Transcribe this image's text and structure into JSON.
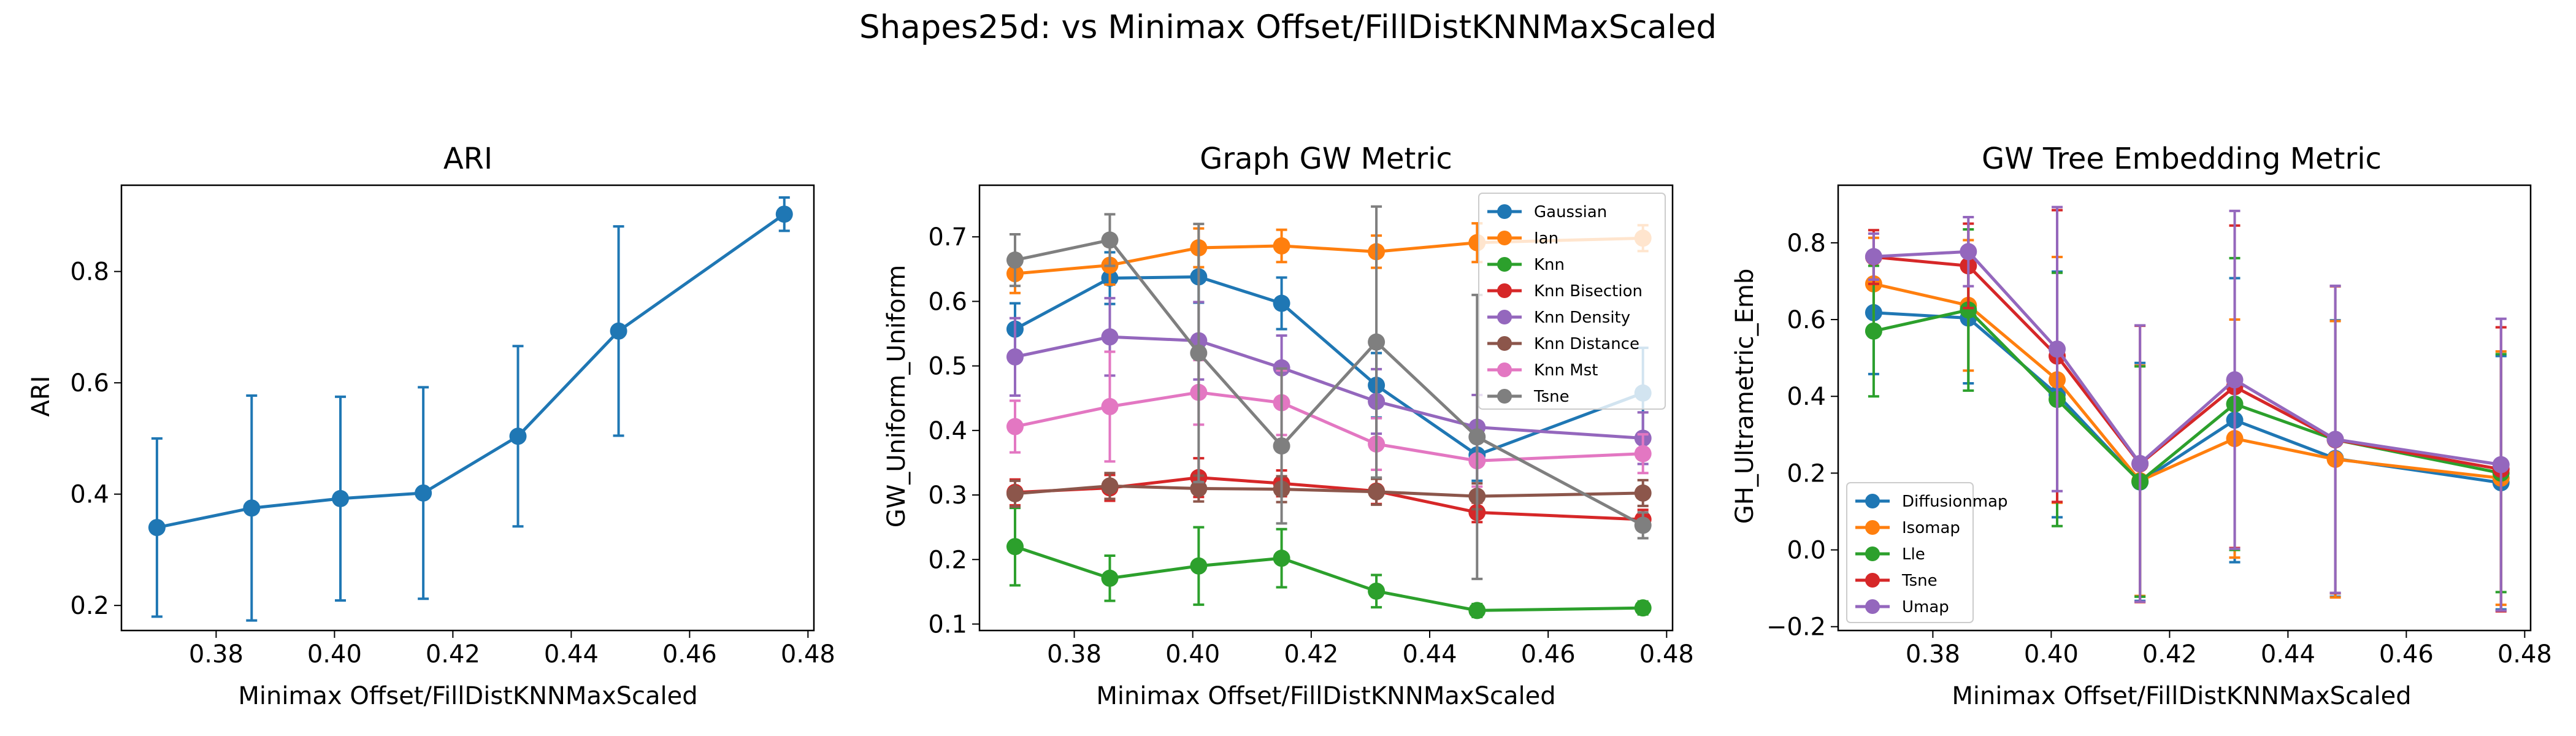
{
  "figure": {
    "suptitle": "Shapes25d: vs Minimax Offset/FillDistKNNMaxScaled"
  },
  "chart_data": [
    {
      "type": "line",
      "id": "ari",
      "title": "ARI",
      "xlabel": "Minimax Offset/FillDistKNNMaxScaled",
      "ylabel": "ARI",
      "xlim": [
        0.364,
        0.481
      ],
      "ylim": [
        0.155,
        0.955
      ],
      "xticks": [
        0.38,
        0.4,
        0.42,
        0.44,
        0.46,
        0.48
      ],
      "xtick_labels": [
        "0.38",
        "0.40",
        "0.42",
        "0.44",
        "0.46",
        "0.48"
      ],
      "yticks": [
        0.2,
        0.4,
        0.6,
        0.8
      ],
      "ytick_labels": [
        "0.2",
        "0.4",
        "0.6",
        "0.8"
      ],
      "legend": null,
      "x": [
        0.37,
        0.386,
        0.401,
        0.415,
        0.431,
        0.448,
        0.476
      ],
      "series": [
        {
          "name": "",
          "color": "#1f77b4",
          "values": [
            0.34,
            0.375,
            0.392,
            0.402,
            0.504,
            0.693,
            0.903
          ],
          "errors": [
            0.16,
            0.202,
            0.183,
            0.19,
            0.162,
            0.188,
            0.03
          ]
        }
      ]
    },
    {
      "type": "line",
      "id": "graph-gw",
      "title": "Graph GW Metric",
      "xlabel": "Minimax Offset/FillDistKNNMaxScaled",
      "ylabel": "GW_Uniform_Uniform",
      "xlim": [
        0.364,
        0.481
      ],
      "ylim": [
        0.09,
        0.78
      ],
      "xticks": [
        0.38,
        0.4,
        0.42,
        0.44,
        0.46,
        0.48
      ],
      "xtick_labels": [
        "0.38",
        "0.40",
        "0.42",
        "0.44",
        "0.46",
        "0.48"
      ],
      "yticks": [
        0.1,
        0.2,
        0.3,
        0.4,
        0.5,
        0.6,
        0.7
      ],
      "ytick_labels": [
        "0.1",
        "0.2",
        "0.3",
        "0.4",
        "0.5",
        "0.6",
        "0.7"
      ],
      "legend": "top-right",
      "x": [
        0.37,
        0.386,
        0.401,
        0.415,
        0.431,
        0.448,
        0.476
      ],
      "series": [
        {
          "name": "Gaussian",
          "color": "#1f77b4",
          "values": [
            0.557,
            0.636,
            0.638,
            0.597,
            0.47,
            0.362,
            0.458
          ],
          "errors": [
            0.04,
            0.04,
            0.04,
            0.04,
            0.05,
            0.04,
            0.07
          ]
        },
        {
          "name": "Ian",
          "color": "#ff7f0e",
          "values": [
            0.643,
            0.656,
            0.683,
            0.686,
            0.677,
            0.691,
            0.698
          ],
          "errors": [
            0.03,
            0.03,
            0.03,
            0.025,
            0.025,
            0.03,
            0.02
          ]
        },
        {
          "name": "Knn",
          "color": "#2ca02c",
          "values": [
            0.22,
            0.171,
            0.19,
            0.202,
            0.151,
            0.121,
            0.125
          ],
          "errors": [
            0.06,
            0.035,
            0.06,
            0.045,
            0.025,
            0.01,
            0.01
          ]
        },
        {
          "name": "Knn Bisection",
          "color": "#d62728",
          "values": [
            0.304,
            0.311,
            0.327,
            0.318,
            0.306,
            0.273,
            0.262
          ],
          "errors": [
            0.02,
            0.02,
            0.03,
            0.02,
            0.02,
            0.015,
            0.015
          ]
        },
        {
          "name": "Knn Density",
          "color": "#9467bd",
          "values": [
            0.514,
            0.545,
            0.539,
            0.497,
            0.445,
            0.405,
            0.388
          ],
          "errors": [
            0.06,
            0.06,
            0.06,
            0.05,
            0.05,
            0.05,
            0.04
          ]
        },
        {
          "name": "Knn Distance",
          "color": "#8c564b",
          "values": [
            0.302,
            0.314,
            0.31,
            0.309,
            0.305,
            0.298,
            0.303
          ],
          "errors": [
            0.02,
            0.02,
            0.02,
            0.02,
            0.02,
            0.02,
            0.02
          ]
        },
        {
          "name": "Knn Mst",
          "color": "#e377c2",
          "values": [
            0.406,
            0.437,
            0.459,
            0.443,
            0.379,
            0.353,
            0.364
          ],
          "errors": [
            0.04,
            0.085,
            0.05,
            0.05,
            0.04,
            0.04,
            0.03
          ]
        },
        {
          "name": "Tsne",
          "color": "#7f7f7f",
          "values": [
            0.664,
            0.695,
            0.52,
            0.376,
            0.537,
            0.39,
            0.253
          ],
          "errors": [
            0.04,
            0.04,
            0.2,
            0.12,
            0.21,
            0.22,
            0.02
          ]
        }
      ]
    },
    {
      "type": "line",
      "id": "gw-tree",
      "title": "GW Tree Embedding Metric",
      "xlabel": "Minimax Offset/FillDistKNNMaxScaled",
      "ylabel": "GH_Ultrametric_Emb",
      "xlim": [
        0.364,
        0.481
      ],
      "ylim": [
        -0.21,
        0.95
      ],
      "xticks": [
        0.38,
        0.4,
        0.42,
        0.44,
        0.46,
        0.48
      ],
      "xtick_labels": [
        "0.38",
        "0.40",
        "0.42",
        "0.44",
        "0.46",
        "0.48"
      ],
      "yticks": [
        -0.2,
        0.0,
        0.2,
        0.4,
        0.6,
        0.8
      ],
      "ytick_labels": [
        "−0.2",
        "0.0",
        "0.2",
        "0.4",
        "0.6",
        "0.8"
      ],
      "legend": "bottom-left",
      "x": [
        0.37,
        0.386,
        0.401,
        0.415,
        0.431,
        0.448,
        0.476
      ],
      "series": [
        {
          "name": "Diffusionmap",
          "color": "#1f77b4",
          "values": [
            0.618,
            0.604,
            0.405,
            0.177,
            0.338,
            0.238,
            0.175
          ],
          "errors": [
            0.16,
            0.17,
            0.32,
            0.31,
            0.37,
            0.36,
            0.33
          ]
        },
        {
          "name": "Isomap",
          "color": "#ff7f0e",
          "values": [
            0.693,
            0.637,
            0.443,
            0.18,
            0.29,
            0.236,
            0.187
          ],
          "errors": [
            0.12,
            0.17,
            0.32,
            0.3,
            0.31,
            0.36,
            0.33
          ]
        },
        {
          "name": "Lle",
          "color": "#2ca02c",
          "values": [
            0.57,
            0.625,
            0.392,
            0.178,
            0.38,
            0.287,
            0.2
          ],
          "errors": [
            0.17,
            0.21,
            0.33,
            0.3,
            0.38,
            0.4,
            0.31
          ]
        },
        {
          "name": "Tsne",
          "color": "#d62728",
          "values": [
            0.763,
            0.74,
            0.505,
            0.224,
            0.425,
            0.287,
            0.21
          ],
          "errors": [
            0.07,
            0.11,
            0.38,
            0.36,
            0.42,
            0.4,
            0.37
          ]
        },
        {
          "name": "Umap",
          "color": "#9467bd",
          "values": [
            0.764,
            0.777,
            0.523,
            0.225,
            0.443,
            0.288,
            0.222
          ],
          "errors": [
            0.06,
            0.09,
            0.37,
            0.36,
            0.44,
            0.4,
            0.38
          ]
        }
      ]
    }
  ]
}
